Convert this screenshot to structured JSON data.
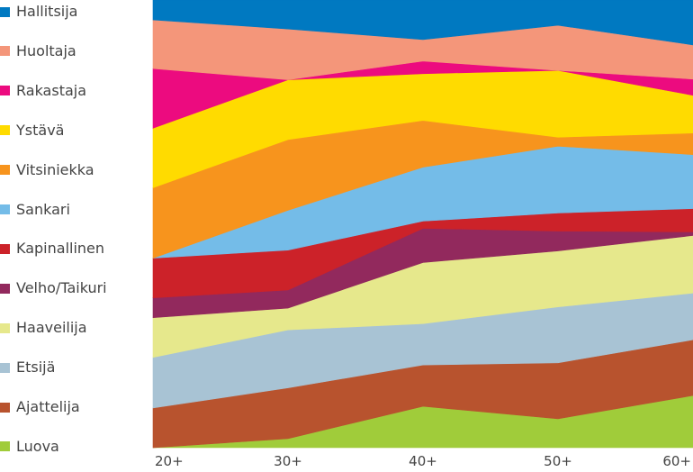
{
  "chart_data": {
    "type": "area",
    "stacked": true,
    "normalized": true,
    "categories": [
      "20+",
      "30+",
      "40+",
      "50+",
      "60+"
    ],
    "ylim": [
      0,
      100
    ],
    "grid": false,
    "legend_position": "left",
    "series": [
      {
        "name": "Luova",
        "color": "#a0cc3a",
        "values": [
          0,
          2.5,
          11.5,
          8,
          14.5
        ]
      },
      {
        "name": "Ajattelija",
        "color": "#b8532e",
        "values": [
          11,
          14,
          11.5,
          15.5,
          15.5
        ]
      },
      {
        "name": "Etsijä",
        "color": "#a8c3d4",
        "values": [
          14,
          16,
          11.5,
          15.5,
          13
        ]
      },
      {
        "name": "Haaveilija",
        "color": "#e6e88c",
        "values": [
          11,
          6,
          17,
          15.5,
          16
        ]
      },
      {
        "name": "Velho/Taikuri",
        "color": "#92295d",
        "values": [
          5.5,
          5,
          9.5,
          5.5,
          1
        ]
      },
      {
        "name": "Kapinallinen",
        "color": "#cc2229",
        "values": [
          11,
          11,
          2,
          5,
          6.5
        ]
      },
      {
        "name": "Sankari",
        "color": "#74bce8",
        "values": [
          0,
          11,
          15,
          18.5,
          15
        ]
      },
      {
        "name": "Vitsiniekka",
        "color": "#f7941d",
        "values": [
          19.5,
          19.5,
          13,
          2.5,
          6
        ]
      },
      {
        "name": "Ystävä",
        "color": "#ffdb00",
        "values": [
          16.5,
          16.5,
          13,
          18.5,
          10.5
        ]
      },
      {
        "name": "Rakastaja",
        "color": "#ec0b7f",
        "values": [
          16.5,
          0,
          3.5,
          0,
          4.5
        ]
      },
      {
        "name": "Huoltaja",
        "color": "#f4967a",
        "values": [
          13.5,
          14,
          6,
          12.5,
          9.5
        ]
      },
      {
        "name": "Hallitsija",
        "color": "#0079c1",
        "values": [
          5.5,
          8,
          11,
          7,
          12.5
        ]
      }
    ]
  }
}
